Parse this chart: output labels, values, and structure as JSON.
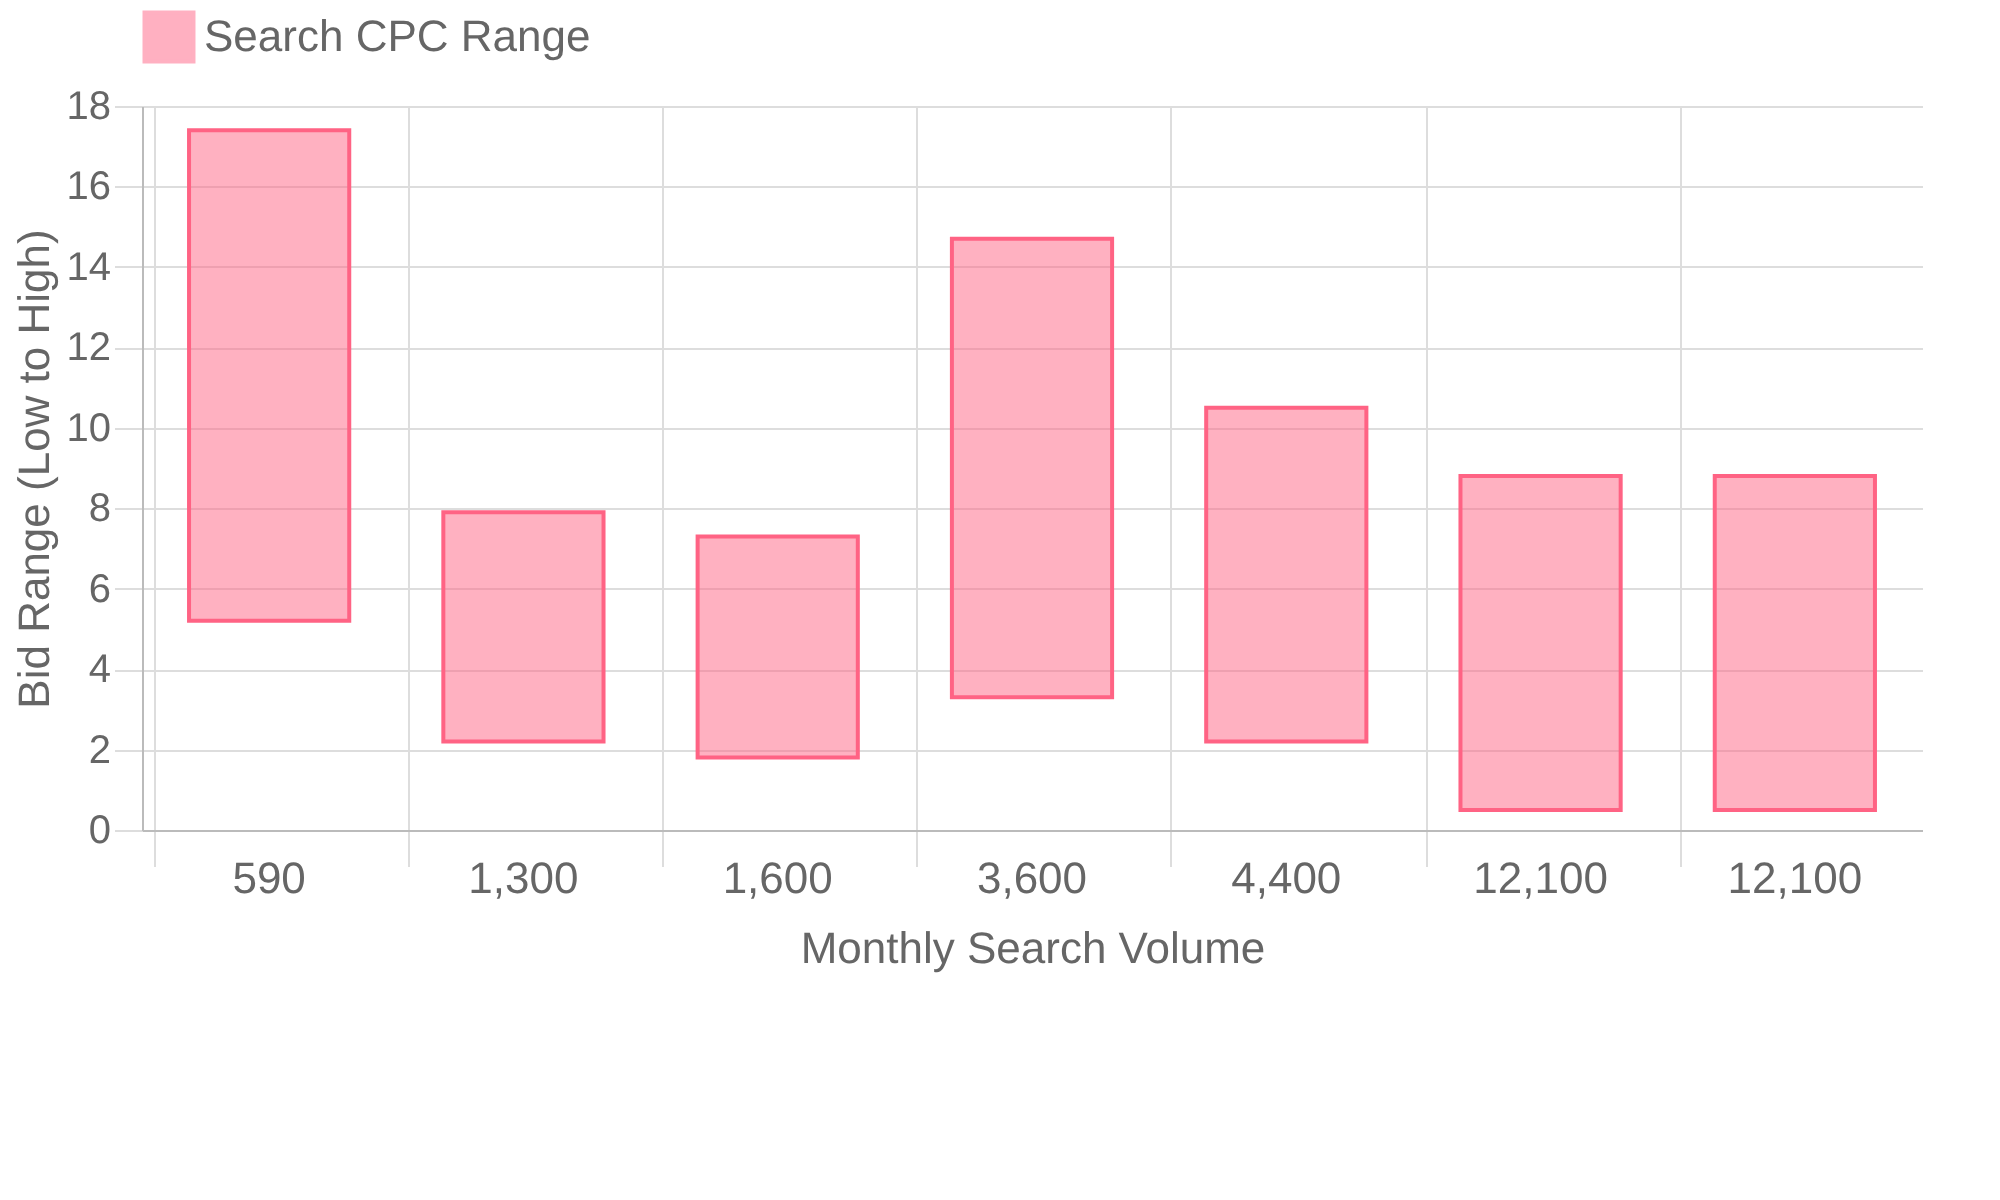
{
  "chart_data": {
    "type": "bar",
    "xlabel": "Monthly Search Volume",
    "ylabel": "Bid Range (Low to High)",
    "categories": [
      "590",
      "1,300",
      "1,600",
      "3,600",
      "4,400",
      "12,100",
      "12,100"
    ],
    "series": [
      {
        "name": "Search CPC Range",
        "color": "#ff6384",
        "values": [
          12.2,
          5.7,
          5.5,
          11.4,
          8.3,
          8.3,
          8.3
        ],
        "base": [
          5.2,
          2.2,
          1.8,
          3.3,
          2.2,
          0.5,
          0.5
        ]
      }
    ],
    "ylim": [
      0,
      18
    ],
    "yticks": [
      0,
      2,
      4,
      6,
      8,
      10,
      12,
      14,
      16,
      18
    ],
    "grid": true,
    "legend": "top"
  }
}
